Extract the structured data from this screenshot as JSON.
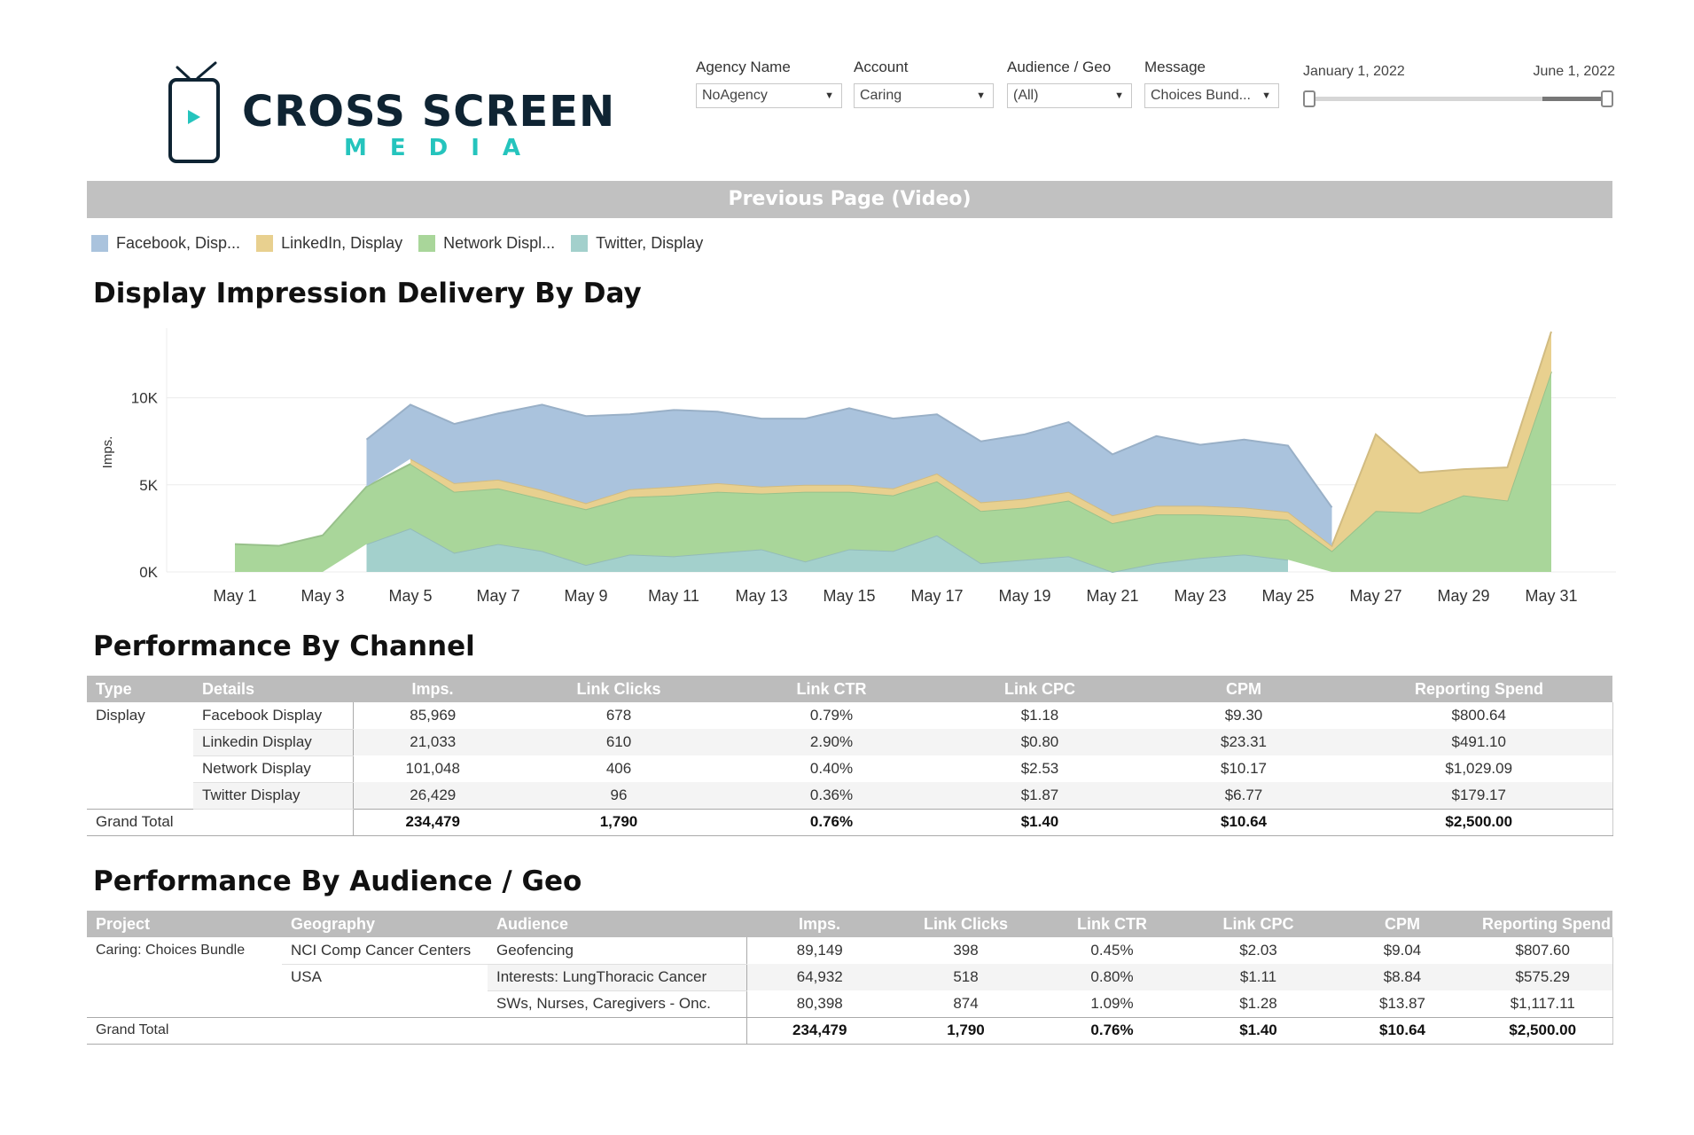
{
  "brand": {
    "name": "CROSS SCREEN",
    "sub": "MEDIA",
    "colors": {
      "dark": "#0f2433",
      "accent": "#25c4bd"
    }
  },
  "filters": [
    {
      "label": "Agency Name",
      "value": "NoAgency"
    },
    {
      "label": "Account",
      "value": "Caring"
    },
    {
      "label": "Audience / Geo",
      "value": "(All)"
    },
    {
      "label": "Message",
      "value": "Choices Bund..."
    }
  ],
  "date_range": {
    "start": "January 1, 2022",
    "end": "June 1, 2022"
  },
  "prev_page_label": "Previous Page (Video)",
  "legend": [
    {
      "label": "Facebook, Disp...",
      "color": "#aac3dd"
    },
    {
      "label": "LinkedIn, Display",
      "color": "#e8d08f"
    },
    {
      "label": "Network Displ...",
      "color": "#a9d69a"
    },
    {
      "label": "Twitter, Display",
      "color": "#a3d0cc"
    }
  ],
  "sections": {
    "chart_title": "Display Impression Delivery By Day",
    "channel_title": "Performance By Channel",
    "audience_title": "Performance By Audience / Geo"
  },
  "chart_data": {
    "type": "area",
    "title": "Display Impression Delivery By Day",
    "ylabel": "Imps.",
    "xlabel": "",
    "ylim": [
      0,
      14000
    ],
    "yticks": [
      0,
      5000,
      10000
    ],
    "ytick_labels": [
      "0K",
      "5K",
      "10K"
    ],
    "grid": true,
    "stacked": true,
    "x": [
      1,
      2,
      3,
      4,
      5,
      6,
      7,
      8,
      9,
      10,
      11,
      12,
      13,
      14,
      15,
      16,
      17,
      18,
      19,
      20,
      21,
      22,
      23,
      24,
      25,
      26,
      27,
      28,
      29,
      30,
      31
    ],
    "xtick_labels": [
      "May 1",
      "May 3",
      "May 5",
      "May 7",
      "May 9",
      "May 11",
      "May 13",
      "May 15",
      "May 17",
      "May 19",
      "May 21",
      "May 23",
      "May 25",
      "May 27",
      "May 29",
      "May 31"
    ],
    "series": [
      {
        "name": "Twitter, Display",
        "color": "#a3d0cc",
        "values": [
          null,
          null,
          null,
          1600,
          2500,
          1100,
          1600,
          1200,
          400,
          1000,
          900,
          1100,
          1300,
          600,
          1300,
          1200,
          2100,
          500,
          700,
          900,
          0,
          500,
          800,
          1000,
          700,
          null,
          null,
          null,
          null,
          null,
          null
        ]
      },
      {
        "name": "Network Display",
        "color": "#a9d69a",
        "values": [
          1600,
          1500,
          2100,
          3300,
          3700,
          3500,
          3200,
          3000,
          3200,
          3300,
          3500,
          3500,
          3200,
          4000,
          3300,
          3200,
          3100,
          3000,
          3000,
          3200,
          2800,
          2800,
          2500,
          2200,
          2300,
          1200,
          3500,
          3400,
          4400,
          4100,
          11500
        ]
      },
      {
        "name": "LinkedIn, Display",
        "color": "#e8d08f",
        "values": [
          null,
          null,
          null,
          null,
          300,
          500,
          500,
          500,
          350,
          450,
          500,
          500,
          400,
          400,
          400,
          400,
          450,
          500,
          500,
          500,
          450,
          500,
          500,
          500,
          450,
          300,
          4400,
          2300,
          1500,
          1900,
          2300
        ]
      },
      {
        "name": "Facebook, Display",
        "color": "#aac3dd",
        "values": [
          null,
          null,
          null,
          2700,
          3100,
          3400,
          3800,
          4900,
          5000,
          4300,
          4400,
          4100,
          3900,
          3800,
          4400,
          4000,
          3400,
          3500,
          3700,
          4000,
          3500,
          4000,
          3500,
          3900,
          3800,
          2200,
          null,
          null,
          null,
          null,
          null
        ]
      }
    ]
  },
  "channel_table": {
    "headers": [
      "Type",
      "Details",
      "Imps.",
      "Link Clicks",
      "Link CTR",
      "Link CPC",
      "CPM",
      "Reporting Spend"
    ],
    "type_label": "Display",
    "rows": [
      {
        "detail": "Facebook Display",
        "imps": "85,969",
        "clicks": "678",
        "ctr": "0.79%",
        "cpc": "$1.18",
        "cpm": "$9.30",
        "spend": "$800.64"
      },
      {
        "detail": "Linkedin Display",
        "imps": "21,033",
        "clicks": "610",
        "ctr": "2.90%",
        "cpc": "$0.80",
        "cpm": "$23.31",
        "spend": "$491.10"
      },
      {
        "detail": "Network Display",
        "imps": "101,048",
        "clicks": "406",
        "ctr": "0.40%",
        "cpc": "$2.53",
        "cpm": "$10.17",
        "spend": "$1,029.09"
      },
      {
        "detail": "Twitter Display",
        "imps": "26,429",
        "clicks": "96",
        "ctr": "0.36%",
        "cpc": "$1.87",
        "cpm": "$6.77",
        "spend": "$179.17"
      }
    ],
    "total": {
      "label": "Grand Total",
      "imps": "234,479",
      "clicks": "1,790",
      "ctr": "0.76%",
      "cpc": "$1.40",
      "cpm": "$10.64",
      "spend": "$2,500.00"
    }
  },
  "audience_table": {
    "headers": [
      "Project",
      "Geography",
      "Audience",
      "Imps.",
      "Link Clicks",
      "Link CTR",
      "Link CPC",
      "CPM",
      "Reporting Spend"
    ],
    "project": "Caring: Choices Bundle",
    "rows": [
      {
        "geo": "NCI Comp Cancer Centers",
        "audience": "Geofencing",
        "imps": "89,149",
        "clicks": "398",
        "ctr": "0.45%",
        "cpc": "$2.03",
        "cpm": "$9.04",
        "spend": "$807.60"
      },
      {
        "geo": "USA",
        "audience": "Interests: LungThoracic Cancer",
        "imps": "64,932",
        "clicks": "518",
        "ctr": "0.80%",
        "cpc": "$1.11",
        "cpm": "$8.84",
        "spend": "$575.29"
      },
      {
        "geo": "",
        "audience": "SWs, Nurses, Caregivers - Onc.",
        "imps": "80,398",
        "clicks": "874",
        "ctr": "1.09%",
        "cpc": "$1.28",
        "cpm": "$13.87",
        "spend": "$1,117.11"
      }
    ],
    "total": {
      "label": "Grand Total",
      "imps": "234,479",
      "clicks": "1,790",
      "ctr": "0.76%",
      "cpc": "$1.40",
      "cpm": "$10.64",
      "spend": "$2,500.00"
    }
  }
}
